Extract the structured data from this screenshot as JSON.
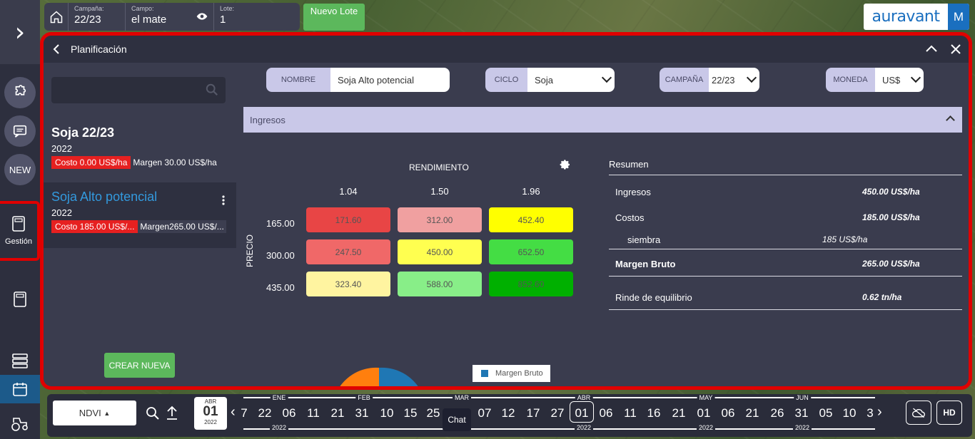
{
  "topbar": {
    "campaign_label": "Campaña:",
    "campaign_value": "22/23",
    "field_label": "Campo:",
    "field_value": "el mate",
    "lot_label": "Lote:",
    "lot_value": "1",
    "new_lot_label": "Nuevo Lote"
  },
  "brand": {
    "logo_text": "auravant",
    "user_initial": "M"
  },
  "sidebar": {
    "new_label": "NEW",
    "gestion_label": "Gestión"
  },
  "panel": {
    "title": "Planificación",
    "plans": [
      {
        "name": "Soja 22/23",
        "year": "2022",
        "cost": "Costo   0.00 US$/ha",
        "margin": "Margen 30.00 US$/ha"
      },
      {
        "name": "Soja Alto potencial",
        "year": "2022",
        "cost": "Costo 185.00 US$/...",
        "margin": "Margen265.00 US$/..."
      }
    ],
    "create_label": "CREAR NUEVA",
    "filters": {
      "nombre_label": "NOMBRE",
      "nombre_value": "Soja Alto potencial",
      "ciclo_label": "CICLO",
      "ciclo_value": "Soja",
      "campana_label": "CAMPAÑA",
      "campana_value": "22/23",
      "moneda_label": "MONEDA",
      "moneda_value": "US$"
    },
    "section_title": "Ingresos",
    "grid": {
      "title": "RENDIMIENTO",
      "axis_label": "PRECIO",
      "cols": [
        "1.04",
        "1.50",
        "1.96"
      ],
      "rows": [
        "165.00",
        "300.00",
        "435.00"
      ],
      "values": [
        [
          "171.60",
          "312.00",
          "452.40"
        ],
        [
          "247.50",
          "450.00",
          "652.50"
        ],
        [
          "323.40",
          "588.00",
          "852.60"
        ]
      ],
      "colors": [
        [
          "#e84545",
          "#f0a0a0",
          "#ffff00"
        ],
        [
          "#f06868",
          "#ffff50",
          "#44dd44"
        ],
        [
          "#fff4a0",
          "#88ee88",
          "#00b000"
        ]
      ]
    },
    "resumen": {
      "title": "Resumen",
      "ingresos_label": "Ingresos",
      "ingresos_value": "450.00 US$/ha",
      "costos_label": "Costos",
      "costos_value": "185.00 US$/ha",
      "siembra_label": "siembra",
      "siembra_value": "185 US$/ha",
      "margen_label": "Margen Bruto",
      "margen_value": "265.00 US$/ha",
      "rinde_label": "Rinde de equilibrio",
      "rinde_value": "0.62 tn/ha"
    },
    "legend_label": "Margen Bruto"
  },
  "timeline": {
    "layer": "NDVI",
    "selected_date": {
      "month": "ABR",
      "day": "01",
      "year": "2022"
    },
    "chat_label": "Chat",
    "hd_label": "HD",
    "days": [
      "7",
      "22",
      "06",
      "11",
      "21",
      "31",
      "10",
      "15",
      "25",
      "07",
      "12",
      "17",
      "27",
      "01",
      "06",
      "11",
      "16",
      "21",
      "01",
      "06",
      "21",
      "26",
      "31",
      "05",
      "10",
      "3"
    ],
    "months": [
      {
        "label": "ENE",
        "pos": 391
      },
      {
        "label": "FEB",
        "pos": 510
      },
      {
        "label": "MAR",
        "pos": 647
      },
      {
        "label": "ABR",
        "pos": 818
      },
      {
        "label": "MAY",
        "pos": 989
      },
      {
        "label": "JUN",
        "pos": 1124
      }
    ],
    "years": [
      {
        "label": "2022",
        "pos": 391
      },
      {
        "label": "2022",
        "pos": 647
      },
      {
        "label": "2022",
        "pos": 818
      },
      {
        "label": "2022",
        "pos": 989
      },
      {
        "label": "2022",
        "pos": 1124
      }
    ]
  }
}
